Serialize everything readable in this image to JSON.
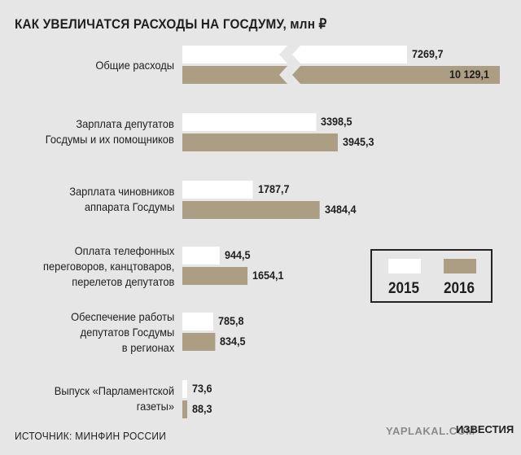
{
  "title": "КАК УВЕЛИЧАТСЯ РАСХОДЫ НА ГОСДУМУ, млн ₽",
  "source": "ИСТОЧНИК: МИНФИН РОССИИ",
  "watermarks": {
    "yaplakal": "YAPLAKAL.COM",
    "izvestia": "ИЗВЕСТИЯ"
  },
  "colors": {
    "y2015": "#ffffff",
    "y2016": "#ab9e82",
    "background": "#e6e6e6"
  },
  "chart_data": {
    "type": "bar",
    "orientation": "horizontal",
    "title": "КАК УВЕЛИЧАТСЯ РАСХОДЫ НА ГОСДУМУ, млн ₽",
    "legend_position": "right",
    "axis_break": "first category bars are broken (truncated)",
    "categories": [
      [
        "Общие расходы"
      ],
      [
        "Зарплата депутатов",
        "Госдумы и их помощников"
      ],
      [
        "Зарплата чиновников",
        "аппарата Госдумы"
      ],
      [
        "Оплата телефонных",
        "переговоров, канцтоваров,",
        "перелетов депутатов"
      ],
      [
        "Обеспечение работы",
        "депутатов Госдумы",
        "в регионах"
      ],
      [
        "Выпуск «Парламентской",
        "газеты»"
      ]
    ],
    "series": [
      {
        "name": "2015",
        "values": [
          7269.7,
          3398.5,
          1787.7,
          944.5,
          785.8,
          73.6
        ],
        "labels": [
          "7269,7",
          "3398,5",
          "1787,7",
          "944,5",
          "785,8",
          "73,6"
        ]
      },
      {
        "name": "2016",
        "values": [
          10129.1,
          3945.3,
          3484.4,
          1654.1,
          834.5,
          88.3
        ],
        "labels": [
          "10 129,1",
          "3945,3",
          "3484,4",
          "1654,1",
          "834,5",
          "88,3"
        ]
      }
    ]
  }
}
